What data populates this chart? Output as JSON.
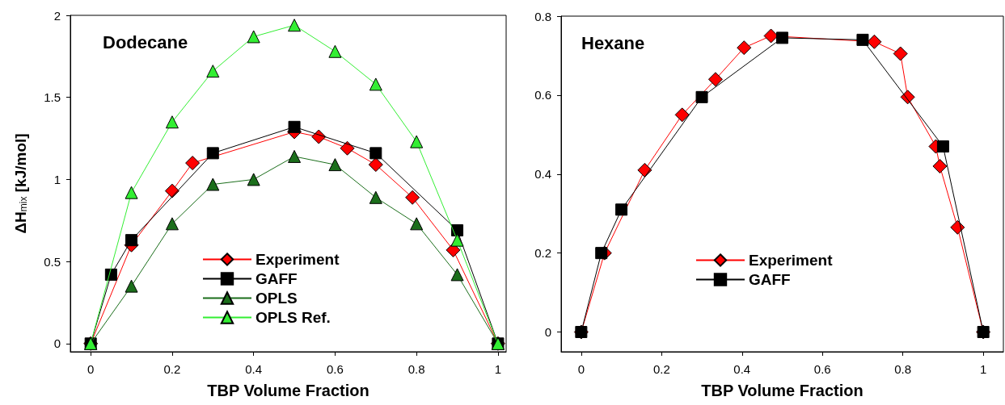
{
  "chart_data": [
    {
      "type": "line",
      "title": "Dodecane",
      "xlabel": "TBP Volume Fraction",
      "ylabel": "ΔH$_{mix}$ [kJ/mol]",
      "xlim": [
        -0.05,
        1.02
      ],
      "ylim": [
        -0.05,
        2
      ],
      "xticks": [
        0,
        0.2,
        0.4,
        0.6,
        0.8,
        1
      ],
      "yticks": [
        0,
        0.5,
        1,
        1.5,
        2
      ],
      "grid": false,
      "legend": "bottom",
      "line_style": "solid",
      "series": [
        {
          "name": "Experiment",
          "color": "#ff0000",
          "marker": "diamond",
          "x": [
            0,
            0.1,
            0.2,
            0.25,
            0.5,
            0.56,
            0.63,
            0.7,
            0.79,
            0.89,
            1
          ],
          "values": [
            0,
            0.6,
            0.93,
            1.1,
            1.29,
            1.26,
            1.19,
            1.09,
            0.89,
            0.57,
            0
          ]
        },
        {
          "name": "GAFF",
          "color": "#000000",
          "marker": "square",
          "x": [
            0,
            0.05,
            0.1,
            0.3,
            0.5,
            0.7,
            0.9,
            1
          ],
          "values": [
            0,
            0.42,
            0.63,
            1.16,
            1.32,
            1.16,
            0.69,
            0
          ]
        },
        {
          "name": "OPLS",
          "color": "#1b6e1b",
          "marker": "triangle",
          "x": [
            0,
            0.1,
            0.2,
            0.3,
            0.4,
            0.5,
            0.6,
            0.7,
            0.8,
            0.9,
            1
          ],
          "values": [
            0,
            0.35,
            0.73,
            0.97,
            1.0,
            1.14,
            1.09,
            0.89,
            0.73,
            0.42,
            0
          ]
        },
        {
          "name": "OPLS Ref.",
          "color": "#33ee33",
          "marker": "triangle",
          "x": [
            0,
            0.1,
            0.2,
            0.3,
            0.4,
            0.5,
            0.6,
            0.7,
            0.8,
            0.9,
            1
          ],
          "values": [
            0,
            0.92,
            1.35,
            1.66,
            1.87,
            1.94,
            1.78,
            1.58,
            1.23,
            0.63,
            0
          ]
        }
      ]
    },
    {
      "type": "line",
      "title": "Hexane",
      "xlabel": "TBP Volume Fraction",
      "xlim": [
        -0.05,
        1.05
      ],
      "ylim": [
        -0.05,
        0.8
      ],
      "xticks": [
        0,
        0.2,
        0.4,
        0.6,
        0.8,
        1
      ],
      "yticks": [
        0,
        0.2,
        0.4,
        0.6,
        0.8
      ],
      "grid": false,
      "legend": "bottom",
      "line_style": "solid",
      "series": [
        {
          "name": "Experiment",
          "color": "#ff0000",
          "marker": "diamond",
          "x": [
            0,
            0.058,
            0.158,
            0.251,
            0.334,
            0.405,
            0.472,
            0.729,
            0.794,
            0.812,
            0.882,
            0.892,
            0.936,
            1
          ],
          "values": [
            0,
            0.2,
            0.41,
            0.55,
            0.64,
            0.72,
            0.75,
            0.735,
            0.705,
            0.595,
            0.47,
            0.42,
            0.265,
            0
          ]
        },
        {
          "name": "GAFF",
          "color": "#000000",
          "marker": "square",
          "x": [
            0,
            0.05,
            0.1,
            0.3,
            0.5,
            0.7,
            0.9,
            1
          ],
          "values": [
            0,
            0.2,
            0.31,
            0.595,
            0.745,
            0.74,
            0.47,
            0
          ]
        }
      ]
    }
  ]
}
